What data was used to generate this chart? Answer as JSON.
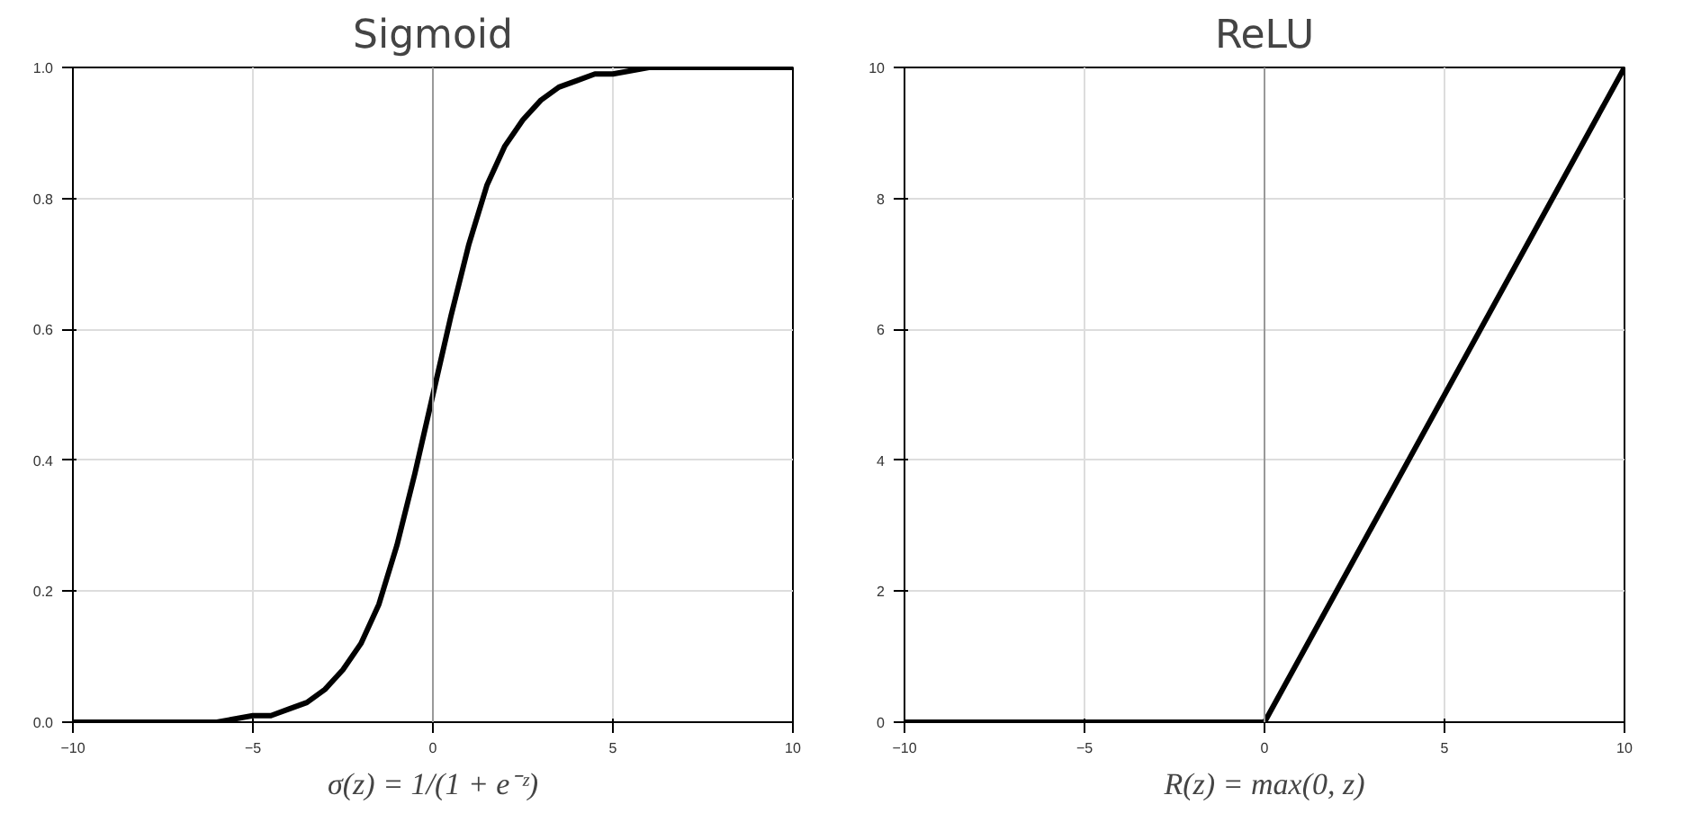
{
  "chart_data": [
    {
      "type": "line",
      "title": "Sigmoid",
      "xlabel": "σ(z) = 1/(1 + e⁻ᶻ)",
      "x": [
        -10,
        -9,
        -8,
        -7,
        -6,
        -5,
        -4.5,
        -4,
        -3.5,
        -3,
        -2.5,
        -2,
        -1.5,
        -1,
        -0.5,
        0,
        0.5,
        1,
        1.5,
        2,
        2.5,
        3,
        3.5,
        4,
        4.5,
        5,
        6,
        7,
        8,
        9,
        10
      ],
      "series": [
        {
          "color": "#000000",
          "values": [
            0,
            0,
            0,
            0,
            0,
            0.01,
            0.01,
            0.02,
            0.03,
            0.05,
            0.08,
            0.12,
            0.18,
            0.27,
            0.38,
            0.5,
            0.62,
            0.73,
            0.82,
            0.88,
            0.92,
            0.95,
            0.97,
            0.98,
            0.99,
            0.99,
            1,
            1,
            1,
            1,
            1
          ]
        }
      ],
      "xlim": [
        -10,
        10
      ],
      "ylim": [
        0,
        1
      ],
      "xticks": [
        -10,
        -5,
        0,
        5,
        10
      ],
      "yticks": [
        {
          "value": 0,
          "label": "0.0"
        },
        {
          "value": 0.2,
          "label": "0.2"
        },
        {
          "value": 0.4,
          "label": "0.4"
        },
        {
          "value": 0.6,
          "label": "0.6"
        },
        {
          "value": 0.8,
          "label": "0.8"
        },
        {
          "value": 1,
          "label": "1.0"
        }
      ],
      "grid": true,
      "ref_lines": [
        {
          "axis": "x",
          "value": 0,
          "color": "#999999"
        }
      ]
    },
    {
      "type": "line",
      "title": "ReLU",
      "xlabel": "R(z) = max(0, z)",
      "x": [
        -10,
        0,
        10
      ],
      "series": [
        {
          "color": "#000000",
          "values": [
            0,
            0,
            10
          ]
        }
      ],
      "xlim": [
        -10,
        10
      ],
      "ylim": [
        0,
        10
      ],
      "xticks": [
        -10,
        -5,
        0,
        5,
        10
      ],
      "yticks": [
        0,
        2,
        4,
        6,
        8,
        10
      ],
      "grid": true,
      "ref_lines": [
        {
          "axis": "x",
          "value": 0,
          "color": "#999999"
        }
      ]
    }
  ]
}
